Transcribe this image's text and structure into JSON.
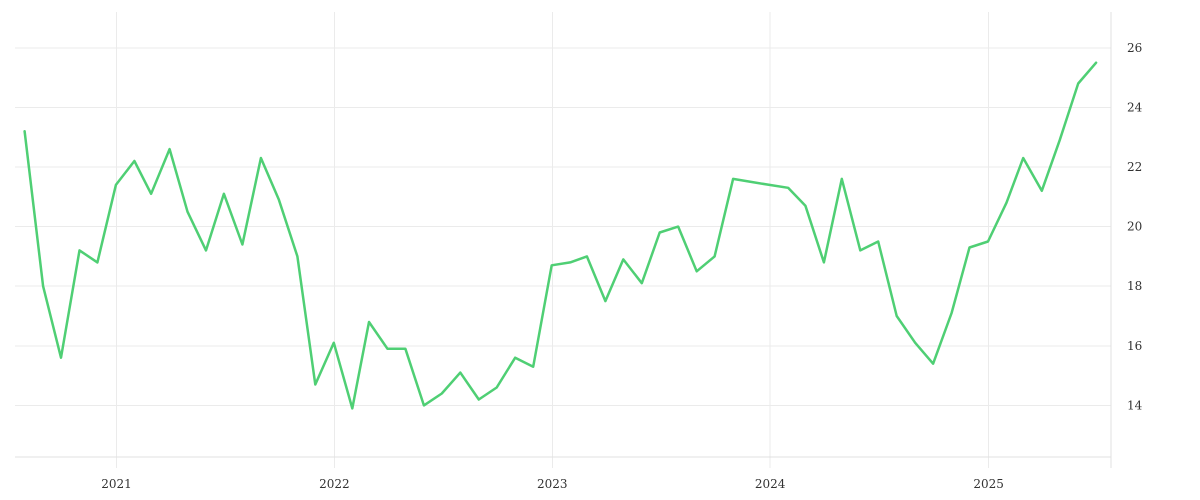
{
  "chart_data": {
    "type": "line",
    "title": "",
    "xlabel": "",
    "ylabel": "",
    "x_ticks": [
      "2021",
      "2022",
      "2023",
      "2024",
      "2025"
    ],
    "y_ticks": [
      14,
      16,
      18,
      20,
      22,
      24,
      26
    ],
    "xlim": [
      "2020-07-15",
      "2025-07-25"
    ],
    "ylim": [
      11.9,
      27.2
    ],
    "grid": true,
    "legend": "none",
    "y_axis_side": "right",
    "line_color": "#4fcf74",
    "series": [
      {
        "x": [
          "2020-07-31",
          "2020-08-31",
          "2020-09-30",
          "2020-10-31",
          "2020-11-30",
          "2020-12-31",
          "2021-01-31",
          "2021-02-28",
          "2021-03-31",
          "2021-04-30",
          "2021-05-31",
          "2021-06-30",
          "2021-07-31",
          "2021-08-31",
          "2021-09-30",
          "2021-10-31",
          "2021-11-30",
          "2021-12-31",
          "2022-01-31",
          "2022-02-28",
          "2022-03-31",
          "2022-04-30",
          "2022-05-31",
          "2022-06-30",
          "2022-07-31",
          "2022-08-31",
          "2022-09-30",
          "2022-10-31",
          "2022-11-30",
          "2022-12-31",
          "2023-01-31",
          "2023-02-28",
          "2023-03-31",
          "2023-04-30",
          "2023-05-31",
          "2023-06-30",
          "2023-07-31",
          "2023-08-31",
          "2023-09-30",
          "2023-10-31",
          "2023-11-30",
          "2023-12-31",
          "2024-01-31",
          "2024-02-29",
          "2024-03-31",
          "2024-04-30",
          "2024-05-31",
          "2024-06-30",
          "2024-07-31",
          "2024-08-31",
          "2024-09-30",
          "2024-10-31",
          "2024-11-30",
          "2024-12-31",
          "2025-01-31",
          "2025-02-28",
          "2025-03-31",
          "2025-04-30",
          "2025-05-31",
          "2025-06-30"
        ],
        "values": [
          23.2,
          18.0,
          15.6,
          19.2,
          18.8,
          21.4,
          22.2,
          21.1,
          22.6,
          20.5,
          19.2,
          21.1,
          19.4,
          22.3,
          20.9,
          19.0,
          14.7,
          16.1,
          13.9,
          16.8,
          15.9,
          15.9,
          14.0,
          14.4,
          15.1,
          14.2,
          14.6,
          15.6,
          15.3,
          18.7,
          18.8,
          19.0,
          17.5,
          18.9,
          18.1,
          19.8,
          20.0,
          18.5,
          19.0,
          21.6,
          21.5,
          21.4,
          21.3,
          20.7,
          18.8,
          21.6,
          19.2,
          19.5,
          17.0,
          16.1,
          15.4,
          17.1,
          19.3,
          19.5,
          20.8,
          22.3,
          21.2,
          22.9,
          24.8,
          25.5
        ]
      }
    ]
  }
}
